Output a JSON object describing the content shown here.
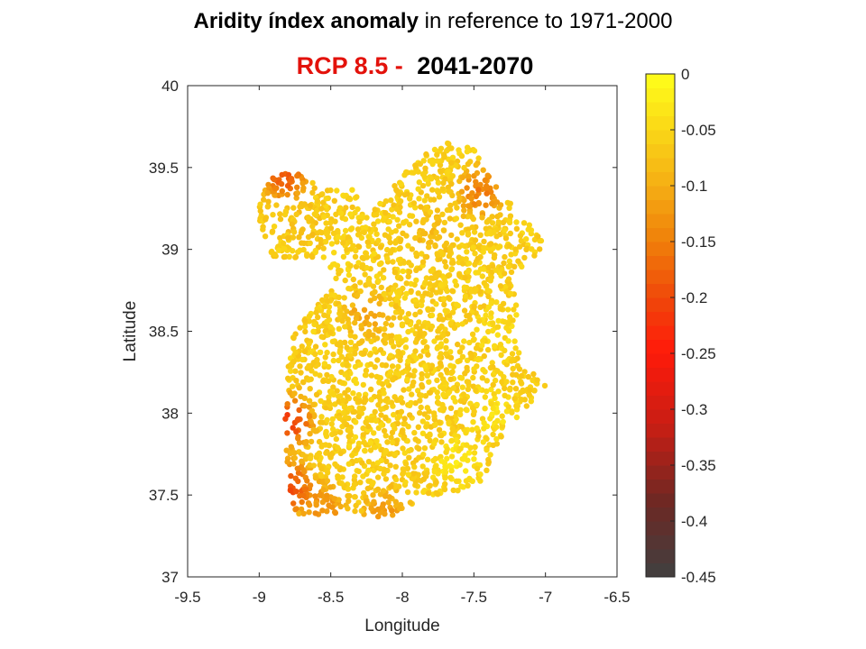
{
  "title": {
    "bold_part": "Aridity índex anomaly",
    "rest_part": " in reference to 1971-2000"
  },
  "subtitle": {
    "scenario": "RCP 8.5",
    "separator": " - ",
    "period": "2041-2070"
  },
  "colors": {
    "scenario_red": "#e3120b",
    "axis": "#262626",
    "colormap_top": "#ffff1a",
    "colormap_mid": "#f0800a",
    "colormap_red": "#ff1a0a",
    "colormap_bottom": "#404040"
  },
  "chart_data": {
    "type": "scatter",
    "xlabel": "Longitude",
    "ylabel": "Latitude",
    "xlim": [
      -9.5,
      -6.5
    ],
    "ylim": [
      37,
      40
    ],
    "x_ticks": [
      -9.5,
      -9,
      -8.5,
      -8,
      -7.5,
      -7,
      -6.5
    ],
    "x_tick_labels": [
      "-9.5",
      "-9",
      "-8.5",
      "-8",
      "-7.5",
      "-7",
      "-6.5"
    ],
    "y_ticks": [
      37,
      37.5,
      38,
      38.5,
      39,
      39.5,
      40
    ],
    "y_tick_labels": [
      "37",
      "37.5",
      "38",
      "38.5",
      "39",
      "39.5",
      "40"
    ],
    "colorbar": {
      "range": [
        -0.45,
        0
      ],
      "ticks": [
        0,
        -0.05,
        -0.1,
        -0.15,
        -0.2,
        -0.25,
        -0.3,
        -0.35,
        -0.4,
        -0.45
      ],
      "tick_labels": [
        "0",
        "-0.05",
        "-0.1",
        "-0.15",
        "-0.2",
        "-0.25",
        "-0.3",
        "-0.35",
        "-0.4",
        "-0.45"
      ],
      "colormap": "autumn-to-dark (yellow → orange → red → dark grey)",
      "levels": 36
    },
    "region_outline": [
      [
        -8.9,
        39.45
      ],
      [
        -8.75,
        39.47
      ],
      [
        -8.55,
        39.38
      ],
      [
        -8.35,
        39.38
      ],
      [
        -8.25,
        39.2
      ],
      [
        -8.05,
        39.4
      ],
      [
        -7.9,
        39.55
      ],
      [
        -7.7,
        39.66
      ],
      [
        -7.5,
        39.62
      ],
      [
        -7.4,
        39.45
      ],
      [
        -7.25,
        39.3
      ],
      [
        -7.05,
        39.08
      ],
      [
        -6.97,
        39.0
      ],
      [
        -7.1,
        38.95
      ],
      [
        -7.25,
        38.82
      ],
      [
        -7.2,
        38.7
      ],
      [
        -7.2,
        38.4
      ],
      [
        -7.1,
        38.25
      ],
      [
        -6.98,
        38.18
      ],
      [
        -7.15,
        38.0
      ],
      [
        -7.3,
        37.85
      ],
      [
        -7.45,
        37.58
      ],
      [
        -7.6,
        37.5
      ],
      [
        -7.85,
        37.5
      ],
      [
        -8.0,
        37.4
      ],
      [
        -8.15,
        37.35
      ],
      [
        -8.4,
        37.38
      ],
      [
        -8.75,
        37.38
      ],
      [
        -8.8,
        37.6
      ],
      [
        -8.82,
        37.95
      ],
      [
        -8.8,
        38.3
      ],
      [
        -8.78,
        38.5
      ],
      [
        -8.65,
        38.6
      ],
      [
        -8.5,
        38.75
      ],
      [
        -8.55,
        38.95
      ],
      [
        -8.9,
        38.95
      ],
      [
        -9.0,
        39.15
      ],
      [
        -9.0,
        39.3
      ]
    ],
    "anomaly_hotspots": [
      {
        "lon": -8.82,
        "lat": 39.45,
        "value": -0.22
      },
      {
        "lon": -7.45,
        "lat": 39.35,
        "value": -0.18
      },
      {
        "lon": -8.25,
        "lat": 38.6,
        "value": -0.12
      },
      {
        "lon": -8.79,
        "lat": 37.95,
        "value": -0.26
      },
      {
        "lon": -8.78,
        "lat": 37.55,
        "value": -0.24
      },
      {
        "lon": -8.12,
        "lat": 37.38,
        "value": -0.14
      },
      {
        "lon": -8.55,
        "lat": 37.42,
        "value": -0.15
      },
      {
        "lon": -7.6,
        "lat": 37.7,
        "value": -0.02
      },
      {
        "lon": -7.35,
        "lat": 38.0,
        "value": -0.03
      },
      {
        "lon": -7.3,
        "lat": 38.5,
        "value": -0.04
      },
      {
        "lon": -8.0,
        "lat": 38.0,
        "value": -0.07
      },
      {
        "lon": -7.8,
        "lat": 39.1,
        "value": -0.09
      },
      {
        "lon": -8.7,
        "lat": 39.15,
        "value": -0.08
      }
    ],
    "background_value": -0.06
  }
}
